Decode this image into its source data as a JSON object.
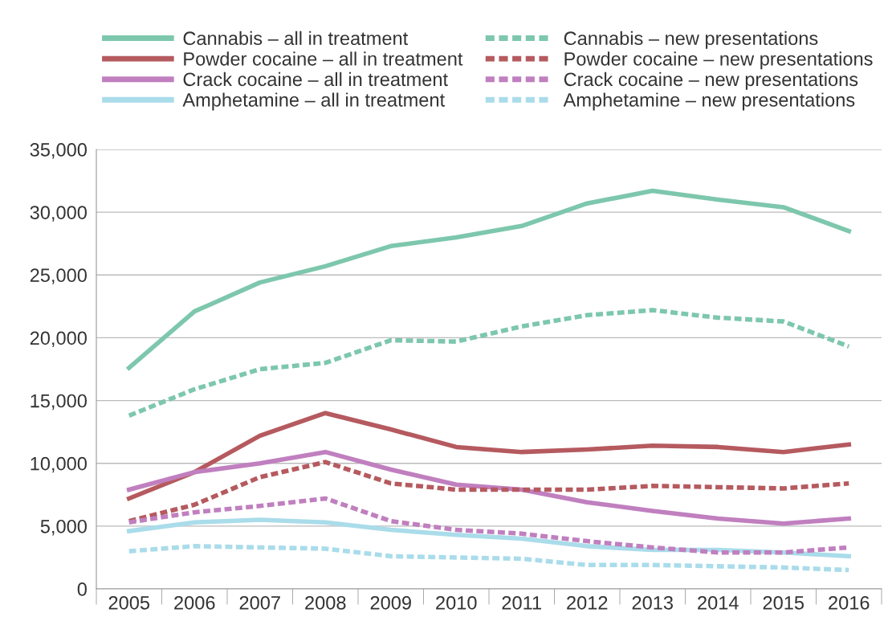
{
  "chart_data": {
    "type": "line",
    "categories": [
      "2005",
      "2006",
      "2007",
      "2008",
      "2009",
      "2010",
      "2011",
      "2012",
      "2013",
      "2014",
      "2015",
      "2016"
    ],
    "series": [
      {
        "name": "Cannabis – all in treatment",
        "color": "#7dc7ad",
        "line_style": "solid",
        "values": [
          17600,
          22100,
          24400,
          25700,
          27300,
          28000,
          28900,
          30700,
          31700,
          31000,
          30400,
          28500
        ]
      },
      {
        "name": "Powder cocaine – all in treatment",
        "color": "#b55a5f",
        "line_style": "solid",
        "values": [
          7200,
          9300,
          12200,
          14000,
          12700,
          11300,
          10900,
          11100,
          11400,
          11300,
          10900,
          11500
        ]
      },
      {
        "name": "Crack cocaine – all in treatment",
        "color": "#c07fbf",
        "line_style": "solid",
        "values": [
          7900,
          9300,
          10000,
          10900,
          9500,
          8300,
          7900,
          6900,
          6200,
          5600,
          5200,
          5600
        ]
      },
      {
        "name": "Amphetamine – all in treatment",
        "color": "#aadcea",
        "line_style": "solid",
        "values": [
          4600,
          5300,
          5500,
          5300,
          4700,
          4300,
          4000,
          3400,
          3100,
          3100,
          2900,
          2600
        ]
      },
      {
        "name": "Cannabis – new presentations",
        "color": "#7dc7ad",
        "line_style": "dashed",
        "values": [
          13800,
          15900,
          17500,
          18000,
          19800,
          19700,
          20900,
          21800,
          22200,
          21600,
          21300,
          19300
        ]
      },
      {
        "name": "Powder cocaine – new presentations",
        "color": "#b55a5f",
        "line_style": "dashed",
        "values": [
          5400,
          6700,
          8900,
          10100,
          8400,
          7900,
          7900,
          7900,
          8200,
          8100,
          8000,
          8400
        ]
      },
      {
        "name": "Crack cocaine – new presentations",
        "color": "#c07fbf",
        "line_style": "dashed",
        "values": [
          5300,
          6100,
          6600,
          7200,
          5400,
          4700,
          4400,
          3800,
          3300,
          2900,
          2900,
          3300
        ]
      },
      {
        "name": "Amphetamine – new presentations",
        "color": "#aadcea",
        "line_style": "dashed",
        "values": [
          3000,
          3400,
          3300,
          3200,
          2600,
          2500,
          2400,
          1900,
          1900,
          1800,
          1700,
          1500
        ]
      }
    ],
    "ylim": [
      0,
      35000
    ],
    "yticks": [
      {
        "value": 0,
        "label": "0"
      },
      {
        "value": 5000,
        "label": "5,000"
      },
      {
        "value": 10000,
        "label": "10,000"
      },
      {
        "value": 15000,
        "label": "15,000"
      },
      {
        "value": 20000,
        "label": "20,000"
      },
      {
        "value": 25000,
        "label": "25,000"
      },
      {
        "value": 30000,
        "label": "30,000"
      },
      {
        "value": 35000,
        "label": "35,000"
      }
    ],
    "grid": "y",
    "legend": "top",
    "marker": "none"
  }
}
